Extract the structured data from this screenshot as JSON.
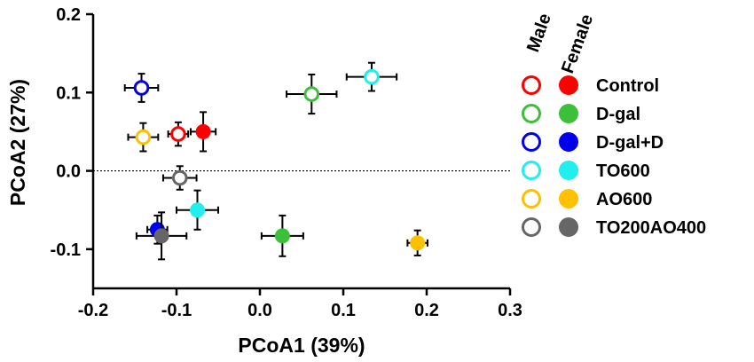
{
  "chart_data": {
    "type": "scatter",
    "title": "",
    "xlabel": "PCoA1 (39%)",
    "ylabel": "PCoA2 (27%)",
    "xlim": [
      -0.2,
      0.3
    ],
    "ylim": [
      -0.15,
      0.2
    ],
    "x_ticks": [
      -0.2,
      -0.1,
      0.0,
      0.1,
      0.2,
      0.3
    ],
    "x_tick_labels": [
      "-0.2",
      "-0.1",
      "0.0",
      "0.1",
      "0.2",
      "0.3"
    ],
    "y_ticks": [
      -0.1,
      0.0,
      0.1,
      0.2
    ],
    "y_tick_labels": [
      "-0.1",
      "0.0",
      "0.1",
      "0.2"
    ],
    "reference_line_y": 0.0,
    "legend": {
      "position": "right",
      "headers": [
        "Male",
        "Female"
      ],
      "groups": [
        {
          "name": "Control",
          "color": "#ff0000"
        },
        {
          "name": "D-gal",
          "color": "#3cc03c"
        },
        {
          "name": "D-gal+D",
          "color": "#0000ee"
        },
        {
          "name": "TO600",
          "color": "#22eeee"
        },
        {
          "name": "AO600",
          "color": "#ffc000"
        },
        {
          "name": "TO200AO400",
          "color": "#666666"
        }
      ]
    },
    "series": [
      {
        "name": "Control",
        "sex": "Male",
        "color": "#ff0000",
        "x": -0.098,
        "y": 0.047,
        "xerr": 0.012,
        "yerr": 0.015
      },
      {
        "name": "Control",
        "sex": "Female",
        "color": "#ff0000",
        "x": -0.068,
        "y": 0.05,
        "xerr": 0.015,
        "yerr": 0.025
      },
      {
        "name": "D-gal",
        "sex": "Male",
        "color": "#3cc03c",
        "x": 0.062,
        "y": 0.098,
        "xerr": 0.03,
        "yerr": 0.025
      },
      {
        "name": "D-gal",
        "sex": "Female",
        "color": "#3cc03c",
        "x": 0.027,
        "y": -0.083,
        "xerr": 0.025,
        "yerr": 0.026
      },
      {
        "name": "D-gal+D",
        "sex": "Male",
        "color": "#0000ee",
        "x": -0.142,
        "y": 0.106,
        "xerr": 0.02,
        "yerr": 0.018
      },
      {
        "name": "D-gal+D",
        "sex": "Female",
        "color": "#0000ee",
        "x": -0.123,
        "y": -0.075,
        "xerr": 0.012,
        "yerr": 0.018
      },
      {
        "name": "TO600",
        "sex": "Male",
        "color": "#22eeee",
        "x": 0.134,
        "y": 0.12,
        "xerr": 0.03,
        "yerr": 0.018
      },
      {
        "name": "TO600",
        "sex": "Female",
        "color": "#22eeee",
        "x": -0.075,
        "y": -0.05,
        "xerr": 0.025,
        "yerr": 0.025
      },
      {
        "name": "AO600",
        "sex": "Male",
        "color": "#ffc000",
        "x": -0.14,
        "y": 0.043,
        "xerr": 0.018,
        "yerr": 0.018
      },
      {
        "name": "AO600",
        "sex": "Female",
        "color": "#ffc000",
        "x": 0.189,
        "y": -0.092,
        "xerr": 0.012,
        "yerr": 0.016
      },
      {
        "name": "TO200AO400",
        "sex": "Male",
        "color": "#666666",
        "x": -0.096,
        "y": -0.009,
        "xerr": 0.02,
        "yerr": 0.015
      },
      {
        "name": "TO200AO400",
        "sex": "Female",
        "color": "#666666",
        "x": -0.118,
        "y": -0.083,
        "xerr": 0.03,
        "yerr": 0.03
      }
    ]
  }
}
